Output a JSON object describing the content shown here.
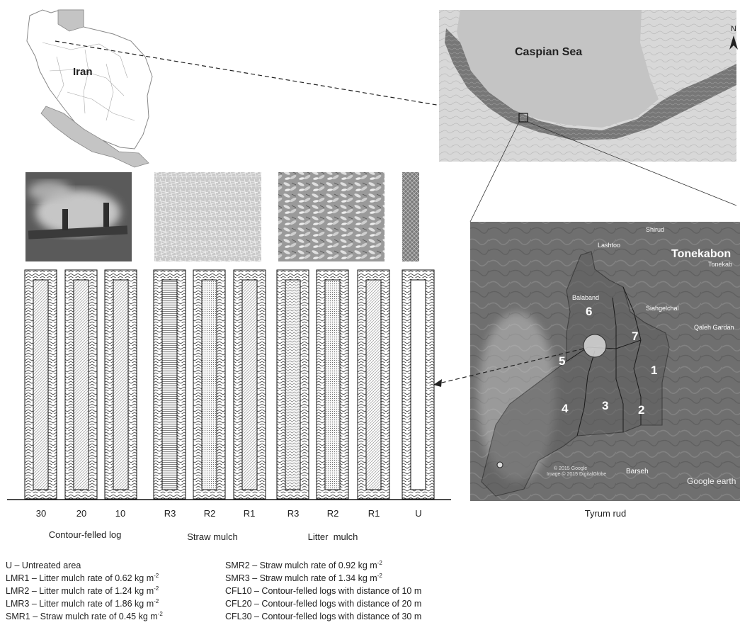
{
  "maps": {
    "iran_label": "Iran",
    "sea_label": "Caspian Sea",
    "north_label": "N",
    "watershed": {
      "city_label": "Tonekabon",
      "city_label_small": "Tonekab",
      "places": [
        "Shirud",
        "Lashtoo",
        "Balaband",
        "Siahgelchal",
        "Qaleh Gardan",
        "Barseh"
      ],
      "subbasins": [
        "1",
        "2",
        "3",
        "4",
        "5",
        "6",
        "7"
      ],
      "watermark": "Google earth",
      "copyright_1": "© 2015 Google",
      "copyright_2": "Image © 2015 DigitalGlobe",
      "caption": "Tyrum rud"
    }
  },
  "plots": {
    "ticks": [
      "30",
      "20",
      "10",
      "R3",
      "R2",
      "R1",
      "R3",
      "R2",
      "R1",
      "U"
    ],
    "groups": [
      "Contour-felled log",
      "Straw mulch",
      "Litter  mulch"
    ]
  },
  "legend": {
    "left": [
      {
        "text": "U – Untreated area",
        "sup": ""
      },
      {
        "text": "LMR1 – Litter mulch rate of 0.62 kg m",
        "sup": "-2"
      },
      {
        "text": "LMR2 – Litter mulch rate of 1.24 kg m",
        "sup": "-2"
      },
      {
        "text": "LMR3 – Litter mulch rate of 1.86 kg m",
        "sup": "-2"
      },
      {
        "text": "SMR1 – Straw mulch rate of 0.45 kg m",
        "sup": "-2"
      }
    ],
    "right": [
      {
        "text": "SMR2 – Straw mulch rate of 0.92 kg m",
        "sup": "-2"
      },
      {
        "text": "SMR3 – Straw mulch rate of 1.34 kg m",
        "sup": "-2"
      },
      {
        "text": "CFL10 – Contour-felled logs with distance of 10 m",
        "sup": ""
      },
      {
        "text": "CFL20 – Contour-felled logs with distance of 20 m",
        "sup": ""
      },
      {
        "text": "CFL30 – Contour-felled logs with distance of 30 m",
        "sup": ""
      }
    ]
  }
}
